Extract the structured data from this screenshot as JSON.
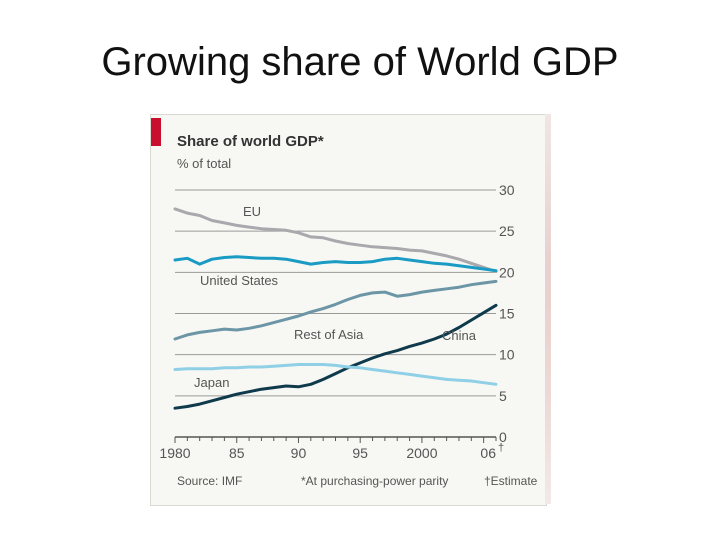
{
  "slide": {
    "title": "Growing share of World GDP"
  },
  "colors": {
    "accent_red": "#c8102e",
    "eu": "#a9a9ad",
    "united_states": "#1a9bc4",
    "rest_of_asia": "#6c96a6",
    "china": "#0e3a4c",
    "japan": "#8fd0e6",
    "grid": "#9a9a9a"
  },
  "chart_data": {
    "type": "line",
    "title": "Share of world GDP*",
    "subtitle": "% of total",
    "ylim": [
      0,
      30
    ],
    "y_ticks": [
      "0",
      "5",
      "10",
      "15",
      "20",
      "25",
      "30"
    ],
    "xlim": [
      1980,
      2006
    ],
    "x_ticks": [
      {
        "value": 1980,
        "label": "1980"
      },
      {
        "value": 1985,
        "label": "85"
      },
      {
        "value": 1990,
        "label": "90"
      },
      {
        "value": 1995,
        "label": "95"
      },
      {
        "value": 2000,
        "label": "2000"
      },
      {
        "value": 2006,
        "label": "06"
      }
    ],
    "x_tick_marker": "†",
    "grid": true,
    "x": [
      1980,
      1981,
      1982,
      1983,
      1984,
      1985,
      1986,
      1987,
      1988,
      1989,
      1990,
      1991,
      1992,
      1993,
      1994,
      1995,
      1996,
      1997,
      1998,
      1999,
      2000,
      2001,
      2002,
      2003,
      2004,
      2005,
      2006
    ],
    "series": [
      {
        "name": "EU",
        "color_key": "eu",
        "values": [
          27.7,
          27.2,
          26.9,
          26.3,
          26.0,
          25.7,
          25.5,
          25.3,
          25.2,
          25.1,
          24.8,
          24.3,
          24.2,
          23.8,
          23.5,
          23.3,
          23.1,
          23.0,
          22.9,
          22.7,
          22.6,
          22.3,
          22.0,
          21.6,
          21.1,
          20.6,
          20.1
        ]
      },
      {
        "name": "United States",
        "color_key": "united_states",
        "values": [
          21.5,
          21.7,
          21.0,
          21.6,
          21.8,
          21.9,
          21.8,
          21.7,
          21.7,
          21.6,
          21.3,
          21.0,
          21.2,
          21.3,
          21.2,
          21.2,
          21.3,
          21.6,
          21.7,
          21.5,
          21.3,
          21.1,
          21.0,
          20.8,
          20.6,
          20.4,
          20.2
        ]
      },
      {
        "name": "Rest of Asia",
        "color_key": "rest_of_asia",
        "values": [
          11.9,
          12.4,
          12.7,
          12.9,
          13.1,
          13.0,
          13.2,
          13.5,
          13.9,
          14.3,
          14.7,
          15.2,
          15.6,
          16.1,
          16.7,
          17.2,
          17.5,
          17.6,
          17.1,
          17.3,
          17.6,
          17.8,
          18.0,
          18.2,
          18.5,
          18.7,
          18.9
        ]
      },
      {
        "name": "China",
        "color_key": "china",
        "values": [
          3.5,
          3.7,
          4.0,
          4.4,
          4.8,
          5.2,
          5.5,
          5.8,
          6.0,
          6.2,
          6.1,
          6.4,
          7.0,
          7.7,
          8.4,
          9.0,
          9.6,
          10.1,
          10.5,
          11.0,
          11.4,
          11.9,
          12.5,
          13.3,
          14.2,
          15.1,
          16.0
        ]
      },
      {
        "name": "Japan",
        "color_key": "japan",
        "values": [
          8.2,
          8.3,
          8.3,
          8.3,
          8.4,
          8.4,
          8.5,
          8.5,
          8.6,
          8.7,
          8.8,
          8.8,
          8.8,
          8.7,
          8.5,
          8.4,
          8.2,
          8.0,
          7.8,
          7.6,
          7.4,
          7.2,
          7.0,
          6.9,
          6.8,
          6.6,
          6.4
        ]
      }
    ],
    "source": "Source: IMF",
    "footnote": "*At purchasing-power parity",
    "estimate_note": "†Estimate"
  }
}
